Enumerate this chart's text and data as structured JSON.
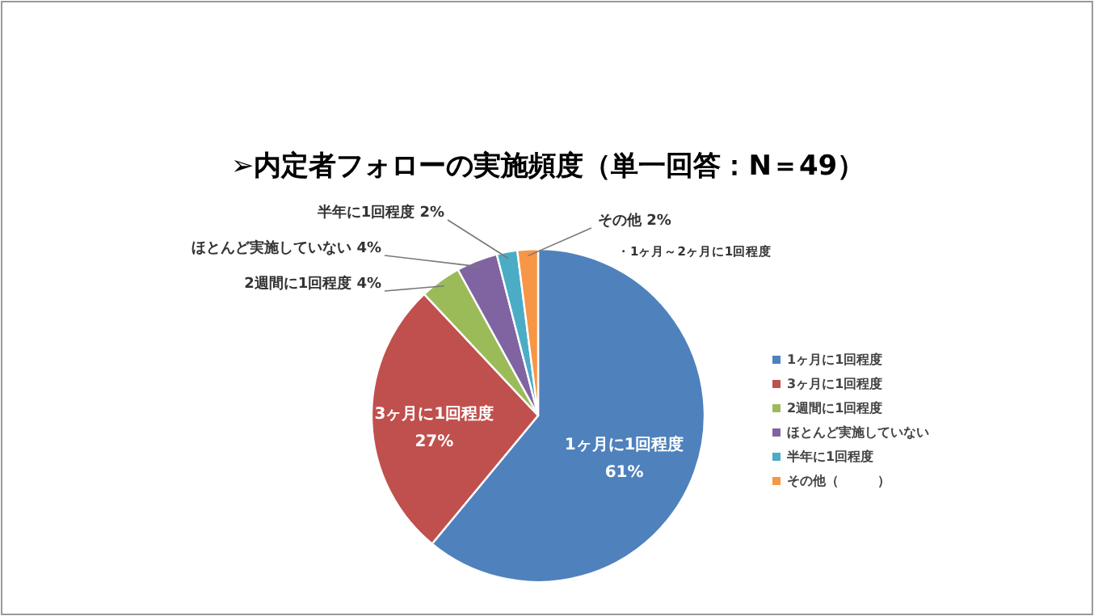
{
  "chart_data": {
    "type": "pie",
    "title": "➢内定者フォローの実施頻度（単一回答：N＝49）",
    "categories": [
      "1ヶ月に1回程度",
      "3ヶ月に1回程度",
      "2週間に1回程度",
      "ほとんど実施していない",
      "半年に1回程度",
      "その他（　　　）"
    ],
    "values": [
      61,
      27,
      4,
      4,
      2,
      2
    ],
    "colors": [
      "#4f81bd",
      "#c0504d",
      "#9bbb59",
      "#8064a2",
      "#4bacc6",
      "#f79646"
    ],
    "value_labels": [
      "1ヶ月に1回程度 61%",
      "3ヶ月に1回程度 27%",
      "2週間に1回程度 4%",
      "ほとんど実施していない 4%",
      "半年に1回程度 2%",
      "その他 2%"
    ],
    "annotations": [
      "・1ヶ月～2ヶ月に1回程度"
    ],
    "legend": "right"
  }
}
